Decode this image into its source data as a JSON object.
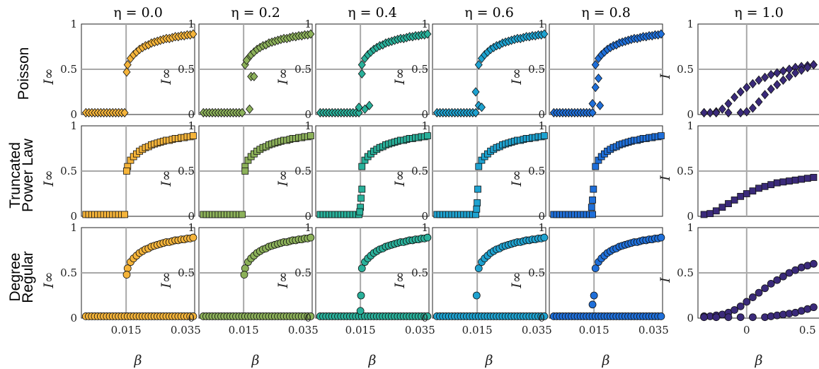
{
  "chart_data": {
    "type": "scatter",
    "grid": true,
    "columns": [
      {
        "title": "η = 0.0",
        "color": "#f5b43a"
      },
      {
        "title": "η = 0.2",
        "color": "#8cb15a"
      },
      {
        "title": "η = 0.4",
        "color": "#29b09a"
      },
      {
        "title": "η = 0.6",
        "color": "#1ea2d0"
      },
      {
        "title": "η = 0.8",
        "color": "#1f6fd9"
      },
      {
        "title": "η = 1.0",
        "color": "#3a2a7a"
      }
    ],
    "rows": [
      {
        "label_lines": [
          "Poisson"
        ],
        "marker": "diamond",
        "ylabel_beta": "I∞",
        "ylabel_last": "I"
      },
      {
        "label_lines": [
          "Truncated",
          "Power Law"
        ],
        "marker": "square",
        "ylabel_beta": "I∞",
        "ylabel_last": "I"
      },
      {
        "label_lines": [
          "Degree",
          "Regular"
        ],
        "marker": "circle",
        "ylabel_beta": "I∞",
        "ylabel_last": "I"
      }
    ],
    "beta_axis": {
      "xlabel": "β",
      "xlim": [
        0.0,
        0.038
      ],
      "xticks": [
        0.015,
        0.035
      ],
      "xtick_labels": [
        "0.015",
        "0.035"
      ],
      "threshold": 0.015
    },
    "last_axis": {
      "xlabel": "β",
      "xlim": [
        -0.4,
        0.6
      ],
      "xticks": [
        0,
        0.5
      ],
      "xtick_labels": [
        "0",
        "0.5"
      ],
      "threshold": 0.0
    },
    "ylim": [
      0,
      1
    ],
    "yticks": [
      0,
      0.5,
      1
    ],
    "ytick_labels": [
      "0",
      "0.5",
      "1"
    ],
    "curves": {
      "beta_upper": {
        "x": [
          0.0155,
          0.0165,
          0.0175,
          0.0185,
          0.0195,
          0.0205,
          0.0215,
          0.0225,
          0.0235,
          0.0245,
          0.0255,
          0.0265,
          0.0275,
          0.0285,
          0.0295,
          0.0305,
          0.0315,
          0.0325,
          0.0335,
          0.0345,
          0.0355,
          0.0365,
          0.0375
        ],
        "y": [
          0.55,
          0.62,
          0.66,
          0.69,
          0.72,
          0.74,
          0.76,
          0.77,
          0.79,
          0.8,
          0.81,
          0.82,
          0.83,
          0.84,
          0.84,
          0.85,
          0.86,
          0.86,
          0.87,
          0.87,
          0.88,
          0.88,
          0.89
        ]
      },
      "beta_lower_zero": {
        "x": [
          0.0015,
          0.0025,
          0.0035,
          0.0045,
          0.0055,
          0.0065,
          0.0075,
          0.0085,
          0.0095,
          0.0105,
          0.0115,
          0.0125,
          0.0135,
          0.0145
        ],
        "y": [
          0.02,
          0.02,
          0.02,
          0.02,
          0.02,
          0.02,
          0.02,
          0.02,
          0.02,
          0.02,
          0.02,
          0.02,
          0.02,
          0.02
        ]
      },
      "beta_transition_points": [
        {
          "col": 0,
          "row": 0,
          "x": [
            0.0152
          ],
          "y": [
            0.47
          ]
        },
        {
          "col": 1,
          "row": 0,
          "x": [
            0.016,
            0.0175,
            0.0185,
            0.017
          ],
          "y": [
            0.6,
            0.42,
            0.42,
            0.06
          ]
        },
        {
          "col": 2,
          "row": 0,
          "x": [
            0.0155,
            0.0145,
            0.0165,
            0.018
          ],
          "y": [
            0.45,
            0.08,
            0.06,
            0.1
          ]
        },
        {
          "col": 3,
          "row": 0,
          "x": [
            0.0145,
            0.0155,
            0.0165
          ],
          "y": [
            0.25,
            0.1,
            0.08
          ]
        },
        {
          "col": 4,
          "row": 0,
          "x": [
            0.0145,
            0.0155,
            0.0165,
            0.017
          ],
          "y": [
            0.12,
            0.3,
            0.4,
            0.1
          ]
        },
        {
          "col": 0,
          "row": 1,
          "x": [
            0.0152
          ],
          "y": [
            0.5
          ]
        },
        {
          "col": 1,
          "row": 1,
          "x": [
            0.0155
          ],
          "y": [
            0.5
          ]
        },
        {
          "col": 2,
          "row": 1,
          "x": [
            0.0155,
            0.0152,
            0.015,
            0.0148
          ],
          "y": [
            0.3,
            0.2,
            0.1,
            0.05
          ]
        },
        {
          "col": 3,
          "row": 1,
          "x": [
            0.0152,
            0.015,
            0.0148
          ],
          "y": [
            0.3,
            0.15,
            0.08
          ]
        },
        {
          "col": 4,
          "row": 1,
          "x": [
            0.0148,
            0.0145,
            0.0142
          ],
          "y": [
            0.3,
            0.18,
            0.1
          ]
        },
        {
          "col": 0,
          "row": 2,
          "x": [
            0.0152
          ],
          "y": [
            0.48
          ]
        },
        {
          "col": 1,
          "row": 2,
          "x": [
            0.0152
          ],
          "y": [
            0.48
          ]
        },
        {
          "col": 2,
          "row": 2,
          "x": [
            0.0152,
            0.015
          ],
          "y": [
            0.25,
            0.08
          ]
        },
        {
          "col": 3,
          "row": 2,
          "x": [
            0.0148
          ],
          "y": [
            0.25
          ]
        },
        {
          "col": 4,
          "row": 2,
          "x": [
            0.0145,
            0.015
          ],
          "y": [
            0.15,
            0.25
          ]
        }
      ],
      "last_col": {
        "row0_a": {
          "x": [
            -0.35,
            -0.3,
            -0.25,
            -0.2,
            -0.15,
            -0.1,
            -0.05,
            0.0,
            0.05,
            0.1,
            0.15,
            0.2,
            0.25,
            0.3,
            0.35,
            0.4,
            0.45,
            0.5,
            0.55
          ],
          "y": [
            0.02,
            0.02,
            0.03,
            0.06,
            0.12,
            0.19,
            0.25,
            0.3,
            0.34,
            0.38,
            0.41,
            0.44,
            0.46,
            0.48,
            0.5,
            0.52,
            0.53,
            0.54,
            0.55
          ]
        },
        "row0_b": {
          "x": [
            -0.35,
            -0.25,
            -0.15,
            -0.05,
            0.0,
            0.05,
            0.1,
            0.15,
            0.2,
            0.25,
            0.3,
            0.35,
            0.4,
            0.45,
            0.5,
            0.55
          ],
          "y": [
            0.02,
            0.02,
            0.02,
            0.02,
            0.03,
            0.07,
            0.14,
            0.22,
            0.28,
            0.33,
            0.38,
            0.42,
            0.46,
            0.49,
            0.52,
            0.55
          ]
        },
        "row1": {
          "x": [
            -0.35,
            -0.3,
            -0.25,
            -0.2,
            -0.15,
            -0.1,
            -0.05,
            0.0,
            0.05,
            0.1,
            0.15,
            0.2,
            0.25,
            0.3,
            0.35,
            0.4,
            0.45,
            0.5,
            0.55
          ],
          "y": [
            0.02,
            0.03,
            0.06,
            0.1,
            0.14,
            0.18,
            0.22,
            0.25,
            0.28,
            0.31,
            0.33,
            0.35,
            0.37,
            0.38,
            0.39,
            0.4,
            0.41,
            0.42,
            0.43
          ]
        },
        "row2_a": {
          "x": [
            -0.35,
            -0.3,
            -0.25,
            -0.2,
            -0.15,
            -0.1,
            -0.05,
            0.0,
            0.05,
            0.1,
            0.15,
            0.2,
            0.25,
            0.3,
            0.35,
            0.4,
            0.45,
            0.5,
            0.55
          ],
          "y": [
            0.02,
            0.02,
            0.03,
            0.04,
            0.06,
            0.09,
            0.13,
            0.18,
            0.23,
            0.28,
            0.33,
            0.38,
            0.42,
            0.46,
            0.5,
            0.53,
            0.56,
            0.58,
            0.6
          ]
        },
        "row2_b": {
          "x": [
            -0.35,
            -0.25,
            -0.15,
            -0.05,
            0.05,
            0.15,
            0.2,
            0.25,
            0.3,
            0.35,
            0.4,
            0.45,
            0.5,
            0.55
          ],
          "y": [
            0.01,
            0.01,
            0.01,
            0.01,
            0.01,
            0.01,
            0.02,
            0.03,
            0.04,
            0.05,
            0.06,
            0.08,
            0.1,
            0.12
          ]
        }
      }
    }
  }
}
